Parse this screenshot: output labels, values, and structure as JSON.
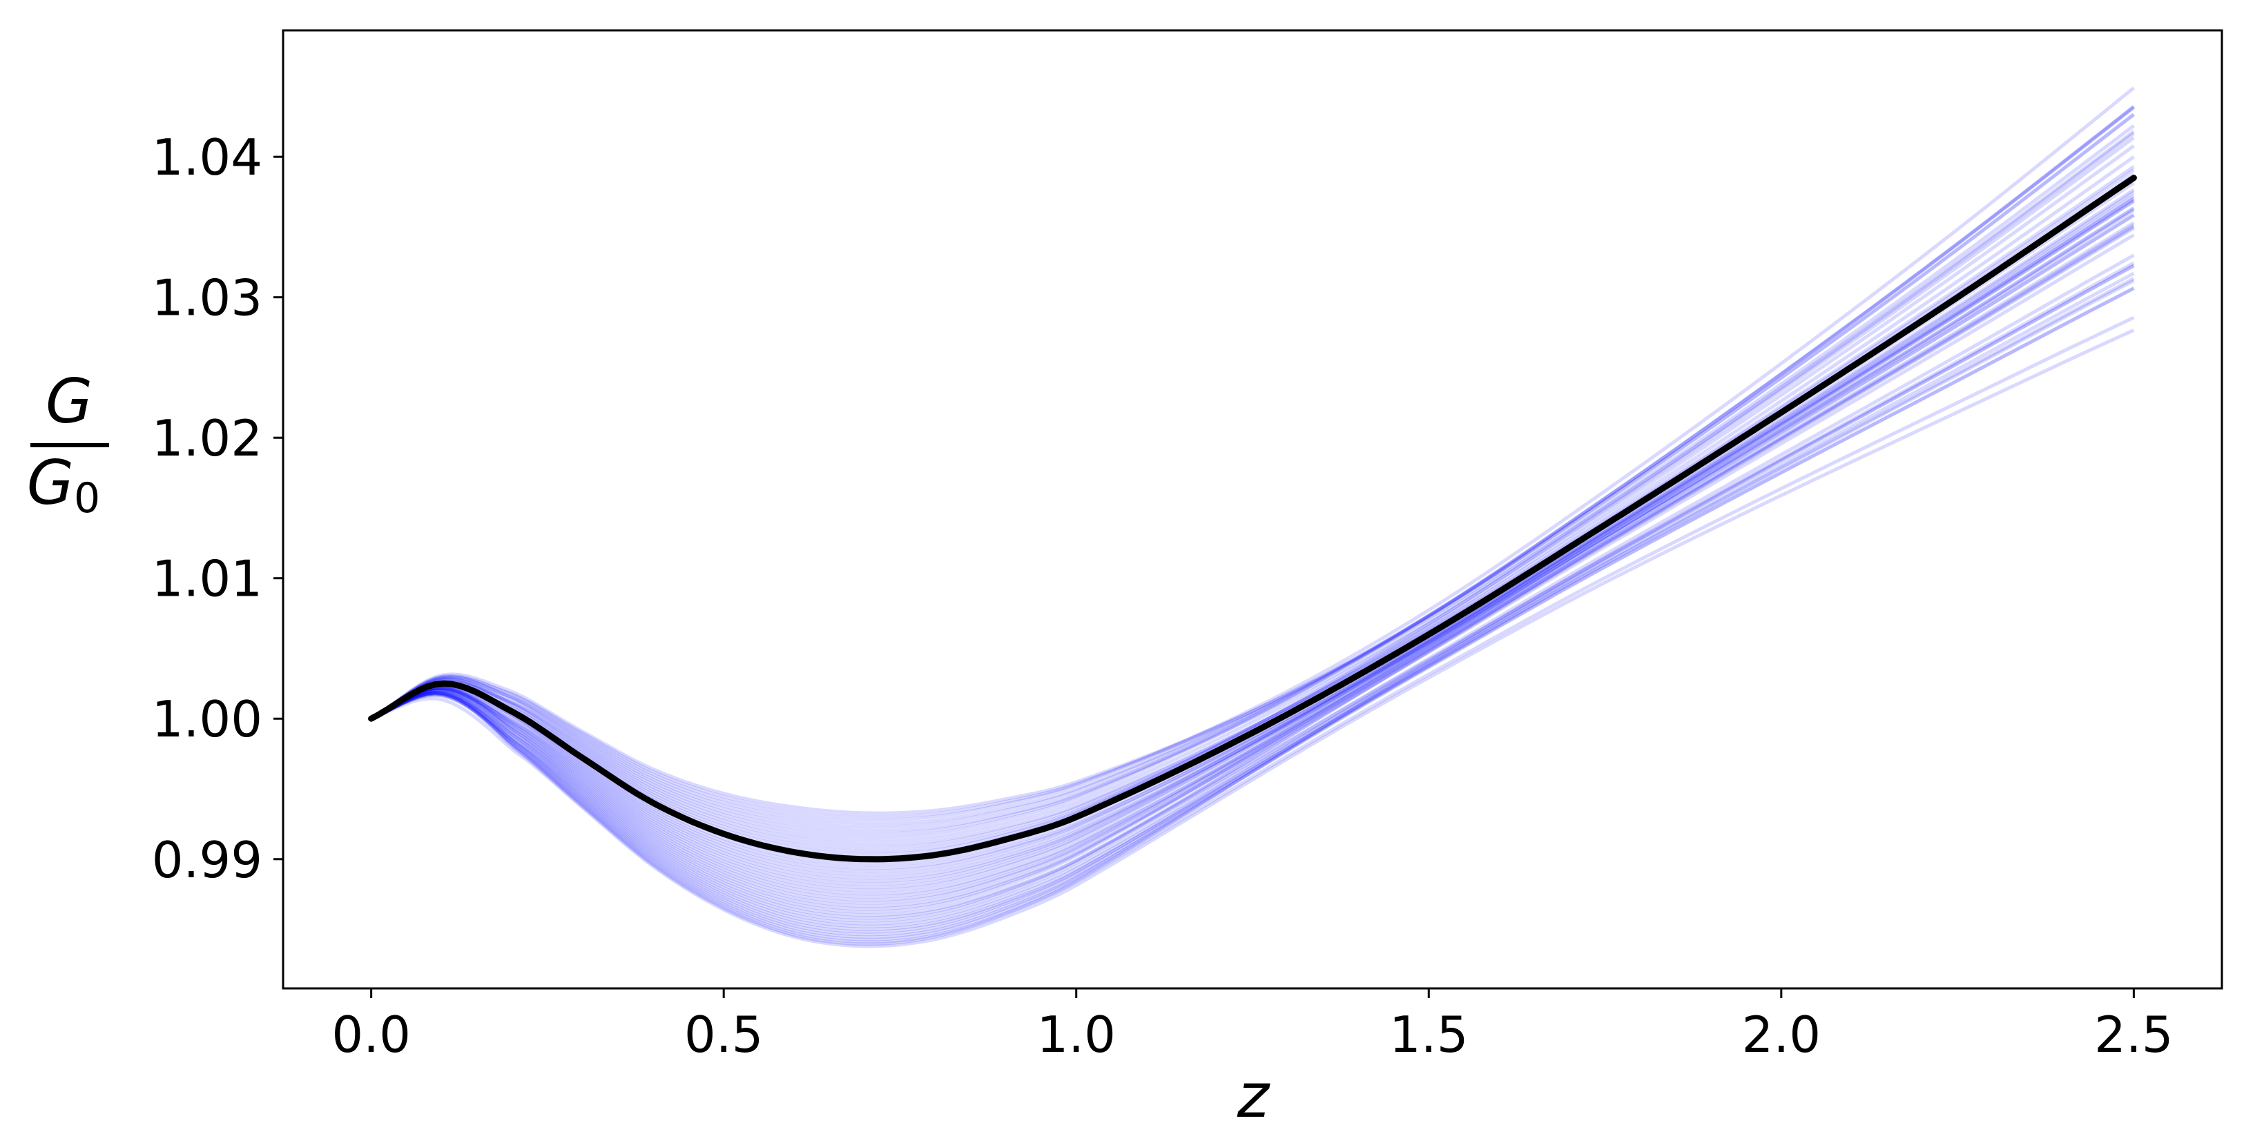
{
  "chart_data": {
    "type": "line",
    "title": "",
    "xlabel": "z",
    "ylabel": {
      "numerator": "G",
      "denominator": "G",
      "denominator_subscript": "0"
    },
    "xlim": [
      -0.125,
      2.625
    ],
    "ylim": [
      0.9808,
      1.049
    ],
    "xticks": [
      0.0,
      0.5,
      1.0,
      1.5,
      2.0,
      2.5
    ],
    "xtick_labels": [
      "0.0",
      "0.5",
      "1.0",
      "1.5",
      "2.0",
      "2.5"
    ],
    "yticks": [
      0.99,
      1.0,
      1.01,
      1.02,
      1.03,
      1.04
    ],
    "ytick_labels": [
      "0.99",
      "1.00",
      "1.01",
      "1.02",
      "1.03",
      "1.04"
    ],
    "grid": false,
    "legend": false,
    "colors": {
      "mean_line": "#000000",
      "samples": "#0000ff",
      "sample_opacity": 0.15
    },
    "mean_series": {
      "x": [
        0.0,
        0.1,
        0.2,
        0.3,
        0.4,
        0.5,
        0.6,
        0.7,
        0.8,
        0.9,
        1.0,
        1.25,
        1.5,
        1.75,
        2.0,
        2.25,
        2.5
      ],
      "y": [
        1.0,
        1.0025,
        1.0005,
        0.9972,
        0.994,
        0.9918,
        0.9905,
        0.99,
        0.9903,
        0.9914,
        0.993,
        0.999,
        1.006,
        1.0138,
        1.0218,
        1.03,
        1.0385
      ]
    },
    "samples": {
      "count": 44,
      "peak_range": [
        1.002,
        1.003
      ],
      "min_range": [
        0.9836,
        0.9935
      ],
      "end_range": [
        1.0275,
        1.046
      ]
    }
  }
}
